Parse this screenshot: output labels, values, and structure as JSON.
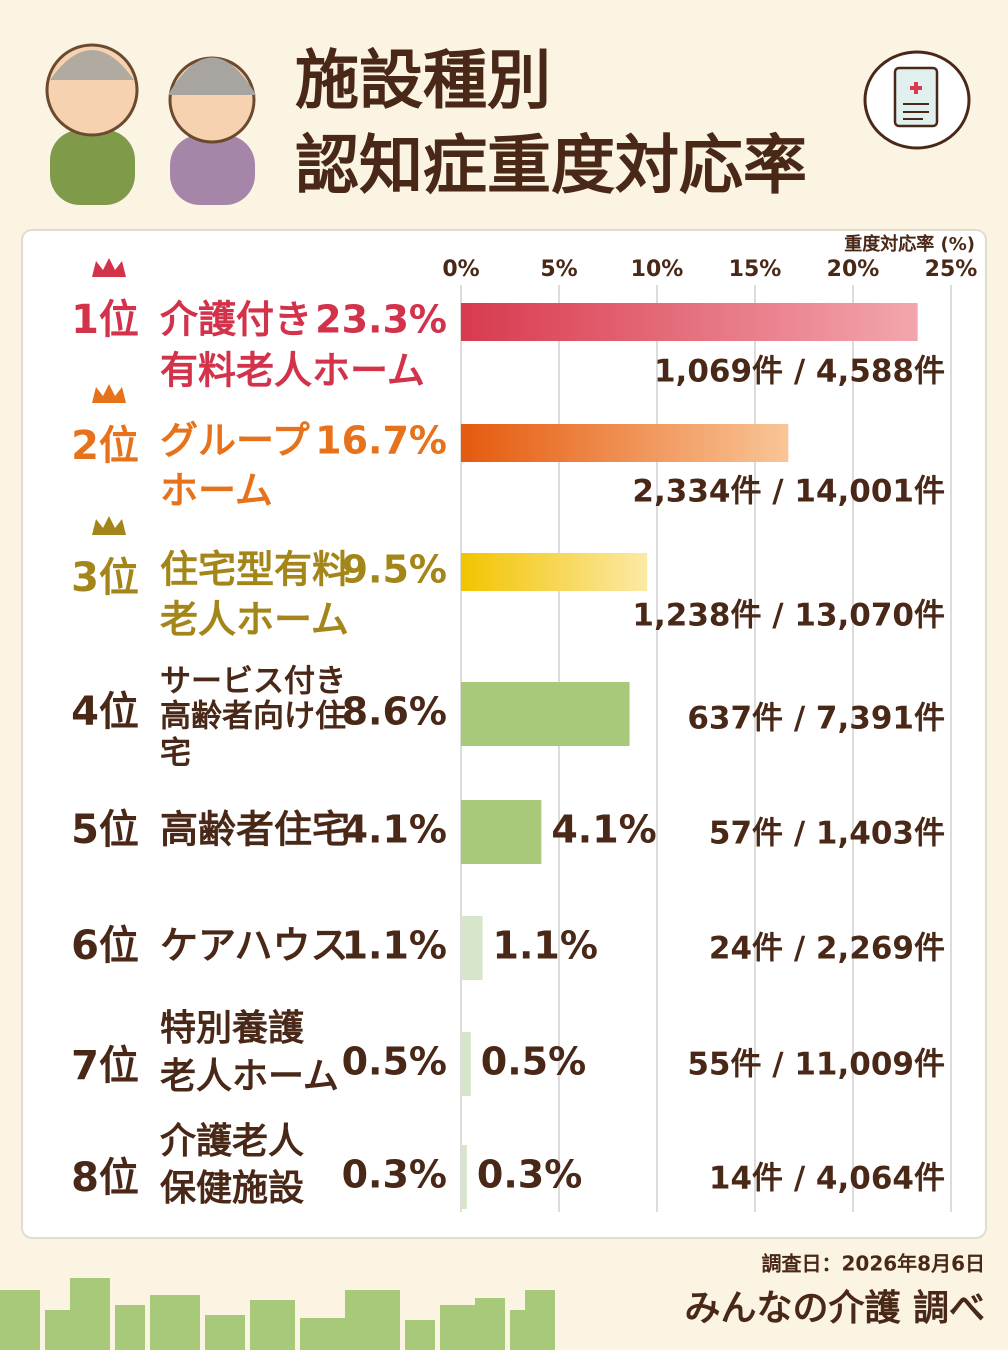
{
  "chart_data": {
    "type": "bar",
    "title": [
      "施設種別",
      "認知症重度対応率"
    ],
    "x_label": "重度対応率 (%)",
    "ranks": [
      "1位",
      "2位",
      "3位",
      "4位",
      "5位",
      "6位",
      "7位",
      "8位"
    ],
    "categories": [
      [
        "介護付き",
        "有料老人ホーム"
      ],
      [
        "グループ",
        "ホーム"
      ],
      [
        "住宅型有料",
        "老人ホーム"
      ],
      [
        "サービス付き",
        "高齢者向け住",
        "宅"
      ],
      [
        "高齢者住宅"
      ],
      [
        "ケアハウス"
      ],
      [
        "特別養護",
        "老人ホーム"
      ],
      [
        "介護老人",
        "保健施設"
      ]
    ],
    "values": [
      23.3,
      16.7,
      9.5,
      8.6,
      4.1,
      1.1,
      0.5,
      0.3
    ],
    "value_labels": [
      "23.3%",
      "16.7%",
      "9.5%",
      "8.6%",
      "4.1%",
      "1.1%",
      "0.5%",
      "0.3%"
    ],
    "counts": [
      "1,069件 / 4,588件",
      "2,334件 / 14,001件",
      "1,238件 / 13,070件",
      "637件 / 7,391件",
      "57件 / 1,403件",
      "24件 / 2,269件",
      "55件 / 11,009件",
      "14件 / 4,064件"
    ],
    "colors": [
      [
        "#d83a4e",
        "#f3a6ae"
      ],
      [
        "#e55a0e",
        "#f9c597"
      ],
      [
        "#f2c400",
        "#fbe9a6"
      ],
      "#a9c97a",
      "#a9c97a",
      "#d7e6cb",
      "#d7e6cb",
      "#d7e6cb"
    ],
    "label_colors": [
      "#d2324a",
      "#e6731c",
      "#a3851a",
      "#4a2818",
      "#4a2818",
      "#4a2818",
      "#4a2818",
      "#4a2818"
    ],
    "xlim": [
      0,
      25
    ],
    "xticks": [
      {
        "value": 0,
        "label": "0%"
      },
      {
        "value": 5,
        "label": "5%"
      },
      {
        "value": 10,
        "label": "10%"
      },
      {
        "value": 15,
        "label": "15%"
      },
      {
        "value": 20,
        "label": "20%"
      },
      {
        "value": 25,
        "label": "25%"
      }
    ],
    "grid": true,
    "survey_date": "調査日：2026年8月6日",
    "source": "みんなの介護 調べ"
  }
}
